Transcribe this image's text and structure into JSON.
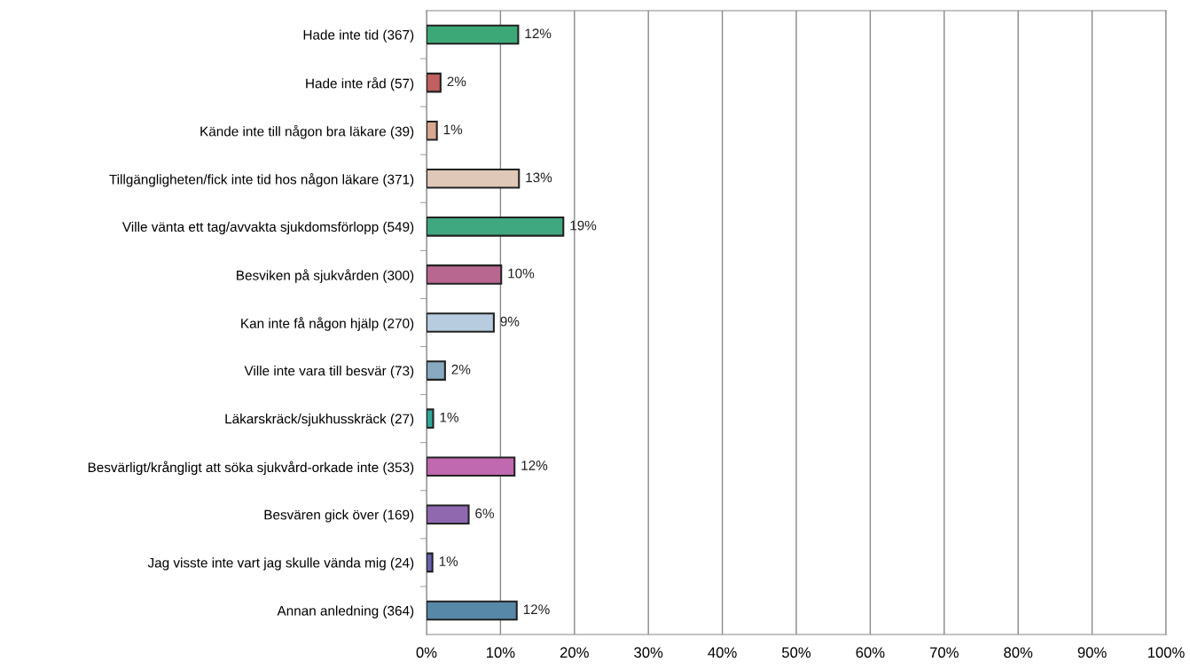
{
  "chart_data": {
    "type": "bar",
    "orientation": "horizontal",
    "categories": [
      "Hade inte tid (367)",
      "Hade inte råd (57)",
      "Kände inte till någon bra läkare (39)",
      "Tillgängligheten/fick inte tid hos någon läkare (371)",
      "Ville vänta ett tag/avvakta sjukdomsförlopp (549)",
      "Besviken på sjukvården (300)",
      "Kan inte få någon hjälp (270)",
      "Ville inte vara till besvär (73)",
      "Läkarskräck/sjukhusskräck (27)",
      "Besvärligt/krångligt att söka sjukvård-orkade inte (353)",
      "Besvären gick över (169)",
      "Jag visste inte vart jag skulle vända mig (24)",
      "Annan anledning (364)"
    ],
    "values": [
      12.4,
      1.9,
      1.4,
      12.5,
      18.5,
      10.1,
      9.1,
      2.5,
      0.9,
      11.9,
      5.7,
      0.8,
      12.2
    ],
    "value_labels": [
      "12%",
      "2%",
      "1%",
      "13%",
      "19%",
      "10%",
      "9%",
      "2%",
      "1%",
      "12%",
      "6%",
      "1%",
      "12%"
    ],
    "colors": [
      "#3ca878",
      "#c06060",
      "#d8a890",
      "#e0c8b8",
      "#40a880",
      "#b86890",
      "#b8cce0",
      "#88aac0",
      "#30a898",
      "#c068b0",
      "#9068b0",
      "#6860b0",
      "#5888a8"
    ],
    "xlim": [
      0,
      100
    ],
    "xticks": [
      {
        "value": 0,
        "label": "0%"
      },
      {
        "value": 10,
        "label": "10%"
      },
      {
        "value": 20,
        "label": "20%"
      },
      {
        "value": 30,
        "label": "30%"
      },
      {
        "value": 40,
        "label": "40%"
      },
      {
        "value": 50,
        "label": "50%"
      },
      {
        "value": 60,
        "label": "60%"
      },
      {
        "value": 70,
        "label": "70%"
      },
      {
        "value": 80,
        "label": "80%"
      },
      {
        "value": 90,
        "label": "90%"
      },
      {
        "value": 100,
        "label": "100%"
      }
    ],
    "grid": "x",
    "legend": false
  }
}
